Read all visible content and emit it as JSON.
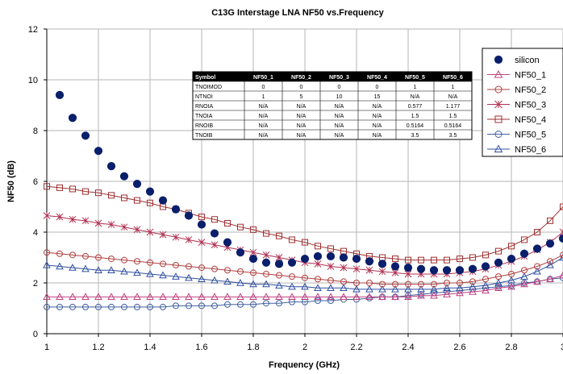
{
  "chart_data": {
    "type": "line",
    "title": "C13G Interstage LNA NF50 vs.Frequency",
    "xlabel": "Frequency (GHz)",
    "ylabel": "NF50 (dB)",
    "xlim": [
      1,
      3
    ],
    "ylim": [
      0,
      12
    ],
    "xticks": [
      "1",
      "1.2",
      "1.4",
      "1.6",
      "1.8",
      "2",
      "2.2",
      "2.4",
      "2.6",
      "2.8",
      "3"
    ],
    "yticks": [
      "0",
      "2",
      "4",
      "6",
      "8",
      "10",
      "12"
    ],
    "grid": true,
    "legend_position": "right",
    "x": [
      1.0,
      1.05,
      1.1,
      1.15,
      1.2,
      1.25,
      1.3,
      1.35,
      1.4,
      1.45,
      1.5,
      1.55,
      1.6,
      1.65,
      1.7,
      1.75,
      1.8,
      1.85,
      1.9,
      1.95,
      2.0,
      2.05,
      2.1,
      2.15,
      2.2,
      2.25,
      2.3,
      2.35,
      2.4,
      2.45,
      2.5,
      2.55,
      2.6,
      2.65,
      2.7,
      2.75,
      2.8,
      2.85,
      2.9,
      2.95,
      3.0
    ],
    "series": [
      {
        "name": "silicon",
        "marker": "filled-circle",
        "color": "#0a1f6b",
        "values": [
          null,
          9.4,
          8.5,
          7.8,
          7.2,
          6.6,
          6.2,
          5.9,
          5.6,
          5.25,
          4.9,
          4.65,
          4.3,
          3.95,
          3.6,
          3.2,
          2.95,
          2.8,
          2.75,
          2.8,
          2.95,
          3.05,
          3.05,
          3.0,
          2.95,
          2.85,
          2.75,
          2.65,
          2.6,
          2.55,
          2.5,
          2.5,
          2.5,
          2.55,
          2.65,
          2.8,
          2.95,
          3.15,
          3.35,
          3.55,
          3.75
        ]
      },
      {
        "name": "NF50_1",
        "marker": "triangle",
        "color": "#c04080",
        "values": [
          1.45,
          1.45,
          1.45,
          1.45,
          1.45,
          1.45,
          1.45,
          1.45,
          1.45,
          1.45,
          1.45,
          1.45,
          1.45,
          1.45,
          1.45,
          1.45,
          1.45,
          1.45,
          1.45,
          1.45,
          1.45,
          1.45,
          1.45,
          1.45,
          1.45,
          1.45,
          1.45,
          1.45,
          1.45,
          1.5,
          1.5,
          1.55,
          1.6,
          1.65,
          1.7,
          1.8,
          1.85,
          1.95,
          2.05,
          2.15,
          2.3
        ]
      },
      {
        "name": "NF50_2",
        "marker": "circle",
        "color": "#b04040",
        "values": [
          3.2,
          3.15,
          3.1,
          3.05,
          3.0,
          2.95,
          2.9,
          2.85,
          2.8,
          2.75,
          2.7,
          2.65,
          2.6,
          2.55,
          2.5,
          2.45,
          2.4,
          2.35,
          2.3,
          2.25,
          2.2,
          2.15,
          2.1,
          2.05,
          2.0,
          2.0,
          1.95,
          1.95,
          1.95,
          1.95,
          1.95,
          2.0,
          2.0,
          2.05,
          2.15,
          2.25,
          2.35,
          2.5,
          2.65,
          2.85,
          3.1
        ]
      },
      {
        "name": "NF50_3",
        "marker": "star",
        "color": "#b03050",
        "values": [
          4.65,
          4.6,
          4.5,
          4.45,
          4.35,
          4.3,
          4.2,
          4.1,
          4.0,
          3.9,
          3.8,
          3.7,
          3.6,
          3.5,
          3.4,
          3.3,
          3.2,
          3.1,
          3.0,
          2.9,
          2.8,
          2.75,
          2.65,
          2.6,
          2.55,
          2.5,
          2.45,
          2.4,
          2.35,
          2.35,
          2.35,
          2.35,
          2.4,
          2.45,
          2.55,
          2.7,
          2.85,
          3.05,
          3.3,
          3.6,
          4.0
        ]
      },
      {
        "name": "NF50_4",
        "marker": "square",
        "color": "#a03030",
        "values": [
          5.8,
          5.75,
          5.7,
          5.6,
          5.55,
          5.45,
          5.35,
          5.25,
          5.15,
          5.0,
          4.9,
          4.75,
          4.6,
          4.5,
          4.35,
          4.2,
          4.1,
          3.95,
          3.85,
          3.7,
          3.6,
          3.45,
          3.35,
          3.25,
          3.15,
          3.05,
          3.0,
          2.95,
          2.9,
          2.9,
          2.9,
          2.9,
          2.95,
          3.0,
          3.1,
          3.25,
          3.45,
          3.7,
          4.0,
          4.45,
          5.0
        ]
      },
      {
        "name": "NF50_5",
        "marker": "circle",
        "color": "#4060a0",
        "values": [
          1.05,
          1.05,
          1.05,
          1.05,
          1.05,
          1.05,
          1.05,
          1.05,
          1.05,
          1.05,
          1.1,
          1.1,
          1.1,
          1.1,
          1.15,
          1.15,
          1.15,
          1.2,
          1.2,
          1.25,
          1.25,
          1.3,
          1.3,
          1.35,
          1.35,
          1.4,
          1.45,
          1.45,
          1.5,
          1.55,
          1.6,
          1.65,
          1.7,
          1.75,
          1.8,
          1.85,
          1.9,
          2.0,
          2.05,
          2.15,
          2.2
        ]
      },
      {
        "name": "NF50_6",
        "marker": "triangle",
        "color": "#3050a0",
        "values": [
          2.7,
          2.65,
          2.6,
          2.55,
          2.5,
          2.5,
          2.45,
          2.4,
          2.35,
          2.3,
          2.25,
          2.2,
          2.15,
          2.1,
          2.05,
          2.0,
          1.95,
          1.95,
          1.9,
          1.85,
          1.85,
          1.8,
          1.8,
          1.8,
          1.75,
          1.75,
          1.75,
          1.75,
          1.75,
          1.75,
          1.75,
          1.8,
          1.8,
          1.85,
          1.9,
          2.0,
          2.1,
          2.25,
          2.45,
          2.7,
          3.0
        ]
      }
    ],
    "table": {
      "headers": [
        "Symbol",
        "NF50_1",
        "NF50_2",
        "NF50_3",
        "NF50_4",
        "NF50_5",
        "NF50_6"
      ],
      "rows": [
        [
          "TNOIMOD",
          "0",
          "0",
          "0",
          "0",
          "1",
          "1"
        ],
        [
          "NTNOI",
          "1",
          "5",
          "10",
          "15",
          "N/A",
          "N/A"
        ],
        [
          "RNOIA",
          "N/A",
          "N/A",
          "N/A",
          "N/A",
          "0.577",
          "1.177"
        ],
        [
          "TNOIA",
          "N/A",
          "N/A",
          "N/A",
          "N/A",
          "1.5",
          "1.5"
        ],
        [
          "RNOIB",
          "N/A",
          "N/A",
          "N/A",
          "N/A",
          "0.5164",
          "0.5164"
        ],
        [
          "TNOIB",
          "N/A",
          "N/A",
          "N/A",
          "N/A",
          "3.5",
          "3.5"
        ]
      ]
    }
  }
}
